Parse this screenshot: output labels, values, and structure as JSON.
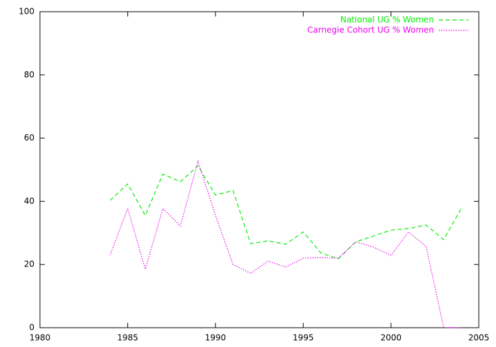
{
  "chart_data": {
    "type": "line",
    "x": [
      1984,
      1985,
      1986,
      1987,
      1988,
      1989,
      1990,
      1991,
      1992,
      1993,
      1994,
      1995,
      1996,
      1997,
      1998,
      1999,
      2000,
      2001,
      2002,
      2003,
      2004
    ],
    "series": [
      {
        "name": "National UG % Women",
        "color": "#00ee00",
        "dash": "6,4",
        "values": [
          40.3,
          45.5,
          35.5,
          48.6,
          46.2,
          51.2,
          42.0,
          43.4,
          26.6,
          27.5,
          26.4,
          30.3,
          23.7,
          21.8,
          27.2,
          29.0,
          30.9,
          31.4,
          32.5,
          27.9,
          37.7
        ]
      },
      {
        "name": "Carnegie Cohort UG % Women",
        "color": "#ee00ee",
        "dash": "1.5,2",
        "values": [
          23.1,
          37.7,
          18.5,
          37.7,
          32.2,
          52.7,
          35.5,
          20.0,
          17.2,
          21.1,
          19.2,
          22.0,
          22.2,
          22.0,
          27.2,
          25.5,
          22.9,
          30.3,
          25.7,
          0,
          0
        ]
      }
    ],
    "xlim": [
      1980,
      2005
    ],
    "xticks": [
      1980,
      1985,
      1990,
      1995,
      2000,
      2005
    ],
    "ylim": [
      0,
      100
    ],
    "yticks": [
      0,
      20,
      40,
      60,
      80,
      100
    ],
    "legend": "top-right"
  }
}
